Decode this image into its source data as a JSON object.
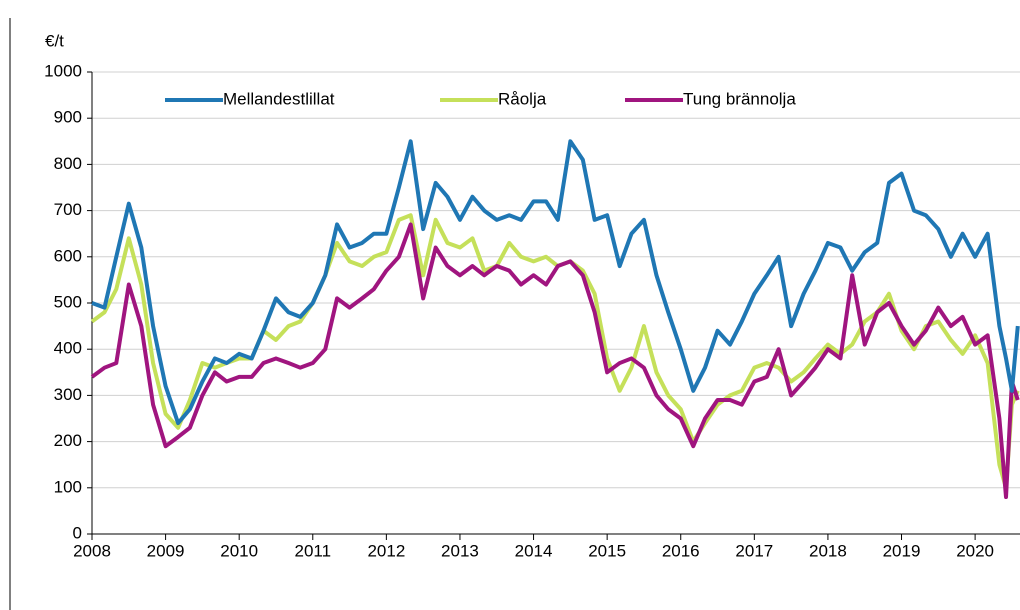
{
  "chart_data": {
    "type": "line",
    "y_label": "€/t",
    "x": [
      2008.0,
      2008.17,
      2008.33,
      2008.5,
      2008.67,
      2008.83,
      2009.0,
      2009.17,
      2009.33,
      2009.5,
      2009.67,
      2009.83,
      2010.0,
      2010.17,
      2010.33,
      2010.5,
      2010.67,
      2010.83,
      2011.0,
      2011.17,
      2011.33,
      2011.5,
      2011.67,
      2011.83,
      2012.0,
      2012.17,
      2012.33,
      2012.5,
      2012.67,
      2012.83,
      2013.0,
      2013.17,
      2013.33,
      2013.5,
      2013.67,
      2013.83,
      2014.0,
      2014.17,
      2014.33,
      2014.5,
      2014.67,
      2014.83,
      2015.0,
      2015.17,
      2015.33,
      2015.5,
      2015.67,
      2015.83,
      2016.0,
      2016.17,
      2016.33,
      2016.5,
      2016.67,
      2016.83,
      2017.0,
      2017.17,
      2017.33,
      2017.5,
      2017.67,
      2017.83,
      2018.0,
      2018.17,
      2018.33,
      2018.5,
      2018.67,
      2018.83,
      2019.0,
      2019.17,
      2019.33,
      2019.5,
      2019.67,
      2019.83,
      2020.0,
      2020.17,
      2020.33,
      2020.42,
      2020.5,
      2020.58
    ],
    "series": [
      {
        "name": "Mellandestlillat",
        "color": "#1f77b4",
        "values": [
          500,
          490,
          600,
          715,
          620,
          450,
          320,
          240,
          270,
          330,
          380,
          370,
          390,
          380,
          440,
          510,
          480,
          470,
          500,
          560,
          670,
          620,
          630,
          650,
          650,
          750,
          850,
          660,
          760,
          730,
          680,
          730,
          700,
          680,
          690,
          680,
          720,
          720,
          680,
          850,
          810,
          680,
          690,
          580,
          650,
          680,
          560,
          480,
          400,
          310,
          360,
          440,
          410,
          460,
          520,
          560,
          600,
          450,
          520,
          570,
          630,
          620,
          570,
          610,
          630,
          760,
          780,
          700,
          690,
          660,
          600,
          650,
          600,
          650,
          450,
          380,
          310,
          450
        ]
      },
      {
        "name": "Råolja",
        "color": "#c5e05a",
        "values": [
          460,
          480,
          530,
          640,
          540,
          370,
          260,
          230,
          290,
          370,
          360,
          370,
          380,
          380,
          440,
          420,
          450,
          460,
          500,
          560,
          630,
          590,
          580,
          600,
          610,
          680,
          690,
          560,
          680,
          630,
          620,
          640,
          570,
          580,
          630,
          600,
          590,
          600,
          580,
          590,
          570,
          520,
          380,
          310,
          360,
          450,
          350,
          300,
          270,
          200,
          240,
          280,
          300,
          310,
          360,
          370,
          360,
          330,
          350,
          380,
          410,
          390,
          410,
          460,
          480,
          520,
          440,
          400,
          450,
          460,
          420,
          390,
          430,
          370,
          150,
          100,
          280,
          310
        ]
      },
      {
        "name": "Tung brännolja",
        "color": "#a0157f",
        "values": [
          340,
          360,
          370,
          540,
          450,
          280,
          190,
          210,
          230,
          300,
          350,
          330,
          340,
          340,
          370,
          380,
          370,
          360,
          370,
          400,
          510,
          490,
          510,
          530,
          570,
          600,
          670,
          510,
          620,
          580,
          560,
          580,
          560,
          580,
          570,
          540,
          560,
          540,
          580,
          590,
          560,
          480,
          350,
          370,
          380,
          360,
          300,
          270,
          250,
          190,
          250,
          290,
          290,
          280,
          330,
          340,
          400,
          300,
          330,
          360,
          400,
          380,
          560,
          410,
          480,
          500,
          450,
          410,
          440,
          490,
          450,
          470,
          410,
          430,
          250,
          80,
          330,
          290
        ]
      }
    ],
    "xlim": [
      2008,
      2020.61
    ],
    "xticks": [
      2008,
      2009,
      2010,
      2011,
      2012,
      2013,
      2014,
      2015,
      2016,
      2017,
      2018,
      2019,
      2020
    ],
    "ylim": [
      0,
      1000
    ],
    "yticks": [
      0,
      100,
      200,
      300,
      400,
      500,
      600,
      700,
      800,
      900,
      1000
    ],
    "grid": true,
    "legend": "top-left"
  }
}
